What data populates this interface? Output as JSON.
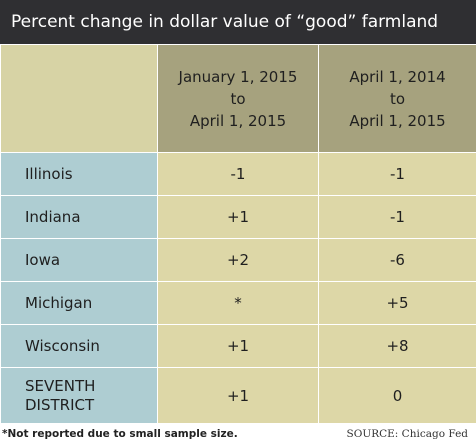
{
  "title": "Percent change in dollar value of “good” farmland",
  "columns": [
    {
      "lines": [
        "January 1, 2015",
        "to",
        "April 1, 2015"
      ]
    },
    {
      "lines": [
        "April 1, 2014",
        "to",
        "April 1, 2015"
      ]
    }
  ],
  "rows": [
    {
      "lines": [
        "Illinois"
      ],
      "values": [
        "-1",
        "-1"
      ]
    },
    {
      "lines": [
        "Indiana"
      ],
      "values": [
        "+1",
        "-1"
      ]
    },
    {
      "lines": [
        "Iowa"
      ],
      "values": [
        "+2",
        "-6"
      ]
    },
    {
      "lines": [
        "Michigan"
      ],
      "values": [
        "*",
        "+5"
      ]
    },
    {
      "lines": [
        "Wisconsin"
      ],
      "values": [
        "+1",
        "+8"
      ]
    },
    {
      "lines": [
        "SEVENTH",
        "DISTRICT"
      ],
      "values": [
        "+1",
        "0"
      ]
    }
  ],
  "footnote": "*Not reported due to small sample size.",
  "source": "SOURCE: Chicago Fed",
  "colors": {
    "title_bg": "#2f2f32",
    "header_bg": "#a6a27e",
    "stub_bg": "#d7d3a5",
    "state_bg": "#aecdd2",
    "value_bg": "#ddd7a7"
  }
}
